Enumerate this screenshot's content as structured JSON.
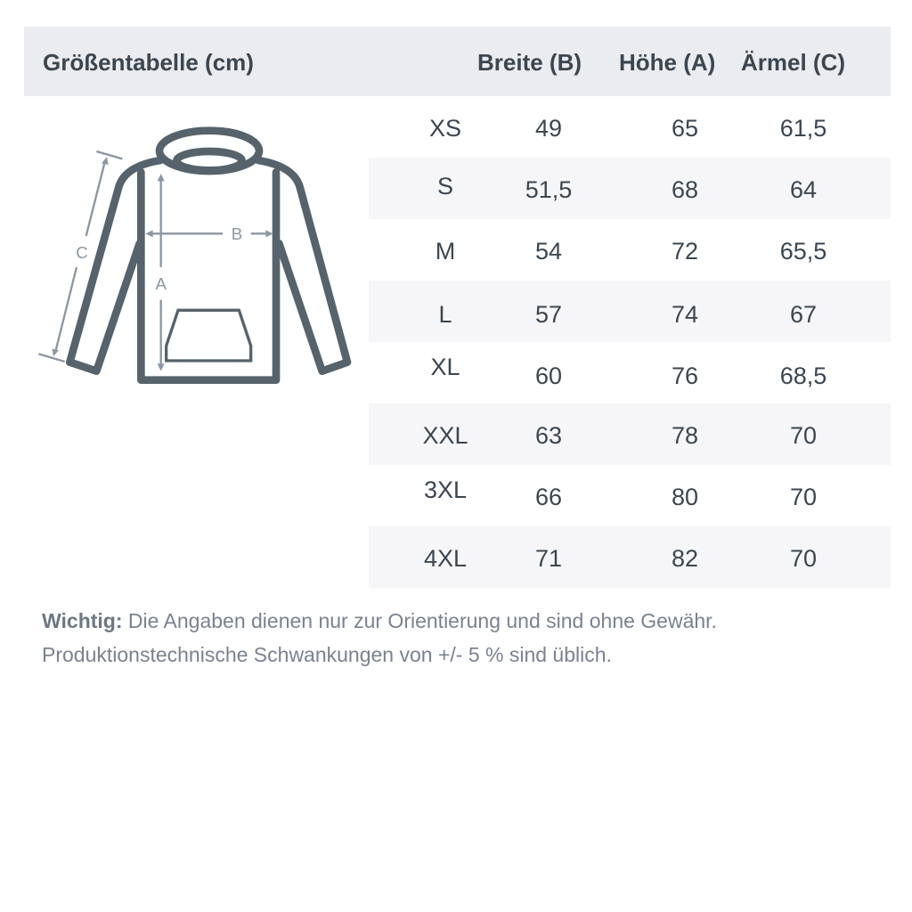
{
  "header": {
    "title": "Größentabelle (cm)",
    "columns": [
      "Breite (B)",
      "Höhe (A)",
      "Ärmel (C)"
    ]
  },
  "diagram": {
    "labels": {
      "a": "A",
      "b": "B",
      "c": "C"
    },
    "colors": {
      "outline": "#56636c",
      "arrows": "#8c97a1"
    }
  },
  "rows": [
    {
      "size": "XS",
      "breite": "49",
      "hoehe": "65",
      "aermel": "61,5"
    },
    {
      "size": "S",
      "breite": "51,5",
      "hoehe": "68",
      "aermel": "64"
    },
    {
      "size": "M",
      "breite": "54",
      "hoehe": "72",
      "aermel": "65,5"
    },
    {
      "size": "L",
      "breite": "57",
      "hoehe": "74",
      "aermel": "67"
    },
    {
      "size": "XL",
      "breite": "60",
      "hoehe": "76",
      "aermel": "68,5"
    },
    {
      "size": "XXL",
      "breite": "63",
      "hoehe": "78",
      "aermel": "70"
    },
    {
      "size": "3XL",
      "breite": "66",
      "hoehe": "80",
      "aermel": "70"
    },
    {
      "size": "4XL",
      "breite": "71",
      "hoehe": "82",
      "aermel": "70"
    }
  ],
  "note": {
    "label": "Wichtig:",
    "line1": "Die Angaben dienen nur zur Orientierung und sind ohne Gewähr.",
    "line2": "Produktionstechnische Schwankungen von +/- 5 % sind üblich."
  }
}
